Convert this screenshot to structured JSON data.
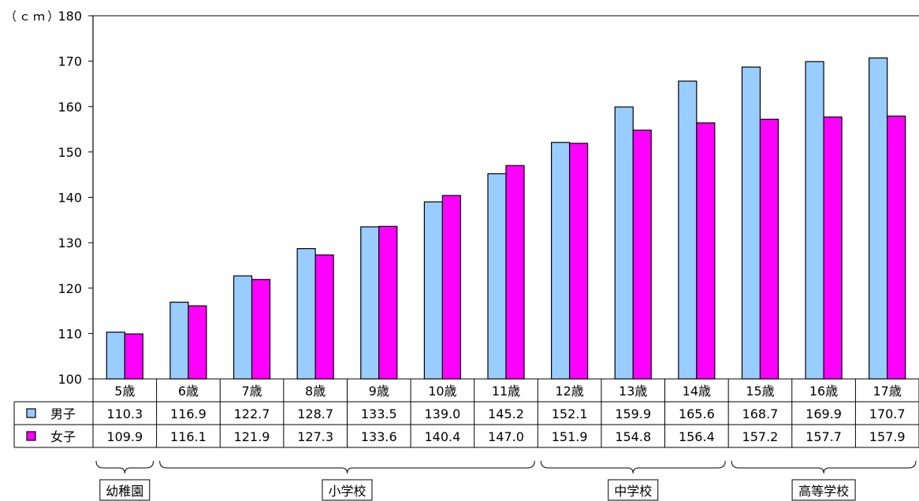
{
  "chart_data": {
    "type": "bar",
    "unit_label": "（ｃｍ）",
    "categories": [
      "5歳",
      "6歳",
      "7歳",
      "8歳",
      "9歳",
      "10歳",
      "11歳",
      "12歳",
      "13歳",
      "14歳",
      "15歳",
      "16歳",
      "17歳"
    ],
    "series": [
      {
        "name": "男子",
        "color": "#99ccff",
        "values": [
          110.3,
          116.9,
          122.7,
          128.7,
          133.5,
          139.0,
          145.2,
          152.1,
          159.9,
          165.6,
          168.7,
          169.9,
          170.7
        ]
      },
      {
        "name": "女子",
        "color": "#ff00ff",
        "values": [
          109.9,
          116.1,
          121.9,
          127.3,
          133.6,
          140.4,
          147.0,
          151.9,
          154.8,
          156.4,
          157.2,
          157.7,
          157.9
        ]
      }
    ],
    "ylim": [
      100,
      180
    ],
    "yticks": [
      100,
      110,
      120,
      130,
      140,
      150,
      160,
      170,
      180
    ],
    "data_table": true,
    "groups": [
      {
        "label": "幼稚園",
        "first": 0,
        "last": 0
      },
      {
        "label": "小学校",
        "first": 1,
        "last": 6
      },
      {
        "label": "中学校",
        "first": 7,
        "last": 9
      },
      {
        "label": "高等学校",
        "first": 10,
        "last": 12
      }
    ]
  }
}
